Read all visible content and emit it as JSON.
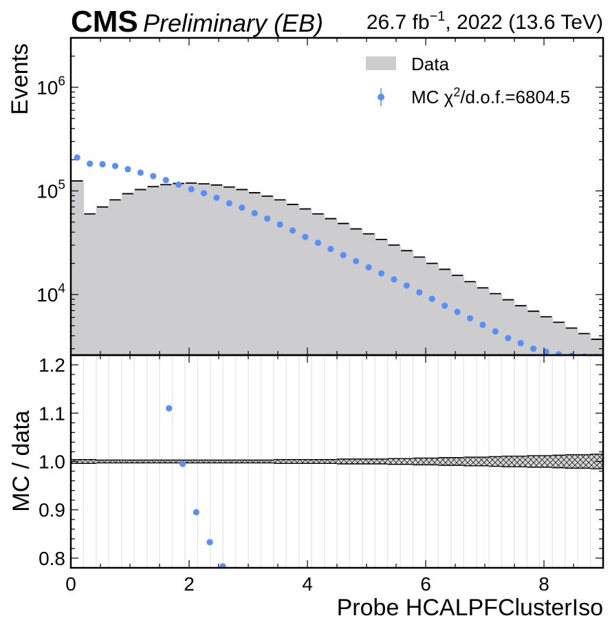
{
  "header": {
    "experiment": "CMS",
    "status": "Preliminary (EB)",
    "lumi_value": "26.7 fb",
    "lumi_exponent": "−1",
    "lumi_suffix": ", 2022 (13.6 TeV)"
  },
  "legend": {
    "data_label": "Data",
    "mc_label_prefix": "MC χ",
    "mc_label_sup": "2",
    "mc_label_suffix": "/d.o.f.=6804.5",
    "position": "top-right"
  },
  "colors": {
    "data_fill": "#cdcdd0",
    "mc_points": "#5790fc",
    "grid": "#e8e8e8",
    "axis": "#000000"
  },
  "chart_data": [
    {
      "panel": "main",
      "type": "bar",
      "ylabel": "Events",
      "yscale": "log",
      "ylim": [
        2600,
        3000000
      ],
      "xlim": [
        0,
        9
      ],
      "y_ticks": [
        {
          "value": 10000,
          "base": "10",
          "exp": "4"
        },
        {
          "value": 100000,
          "base": "10",
          "exp": "5"
        },
        {
          "value": 1000000,
          "base": "10",
          "exp": "6"
        }
      ],
      "bin_edges": [
        0,
        0.214,
        0.429,
        0.643,
        0.857,
        1.071,
        1.286,
        1.5,
        1.714,
        1.929,
        2.143,
        2.357,
        2.571,
        2.786,
        3.0,
        3.214,
        3.429,
        3.643,
        3.857,
        4.071,
        4.286,
        4.5,
        4.714,
        4.929,
        5.143,
        5.357,
        5.571,
        5.786,
        6.0,
        6.214,
        6.429,
        6.643,
        6.857,
        7.071,
        7.286,
        7.5,
        7.714,
        7.929,
        8.143,
        8.357,
        8.571,
        8.786,
        9.0
      ],
      "series": [
        {
          "name": "Data",
          "style": "filled-histogram",
          "values": [
            125000,
            60000,
            70000,
            82000,
            94000,
            103000,
            110000,
            115000,
            118000,
            119000,
            117000,
            114000,
            109000,
            103000,
            96000,
            89000,
            82000,
            74000,
            67000,
            60000,
            54000,
            48500,
            43000,
            38500,
            34000,
            30000,
            26500,
            23000,
            20000,
            17500,
            15300,
            13300,
            11600,
            10200,
            8900,
            7800,
            6900,
            6100,
            5400,
            4750,
            4200,
            3700
          ]
        },
        {
          "name": "MC",
          "style": "points",
          "values": [
            210000,
            183000,
            181000,
            174000,
            162000,
            150000,
            139000,
            127000,
            115000,
            104000,
            95000,
            86000,
            76000,
            69000,
            61000,
            54000,
            47500,
            41500,
            36000,
            31500,
            27500,
            24000,
            21000,
            18300,
            16000,
            14000,
            12200,
            10500,
            9100,
            7800,
            6800,
            5900,
            5100,
            4400,
            3800,
            3400,
            3000,
            2800,
            2650,
            2560,
            2520,
            2500
          ]
        }
      ]
    },
    {
      "panel": "ratio",
      "type": "scatter",
      "ylabel": "MC / data",
      "xlabel": "Probe HCALPFClusterIso",
      "xlim": [
        0,
        9
      ],
      "ylim": [
        0.78,
        1.22
      ],
      "x_ticks": [
        "0",
        "2",
        "4",
        "6",
        "8"
      ],
      "y_ticks": [
        "0.8",
        "0.9",
        "1.0",
        "1.1",
        "1.2"
      ],
      "ratio_points": [
        {
          "x": 1.66,
          "y": 1.11
        },
        {
          "x": 1.89,
          "y": 0.995
        },
        {
          "x": 2.12,
          "y": 0.895
        },
        {
          "x": 2.35,
          "y": 0.833
        },
        {
          "x": 2.57,
          "y": 0.783
        }
      ],
      "uncertainty_halfwidth": [
        0.004,
        0.004,
        0.003,
        0.003,
        0.003,
        0.003,
        0.003,
        0.003,
        0.003,
        0.003,
        0.003,
        0.003,
        0.003,
        0.003,
        0.003,
        0.003,
        0.004,
        0.004,
        0.004,
        0.004,
        0.004,
        0.005,
        0.005,
        0.005,
        0.005,
        0.006,
        0.006,
        0.007,
        0.007,
        0.008,
        0.008,
        0.009,
        0.009,
        0.01,
        0.011,
        0.011,
        0.012,
        0.012,
        0.013,
        0.014,
        0.014,
        0.015
      ],
      "grid": true
    }
  ]
}
